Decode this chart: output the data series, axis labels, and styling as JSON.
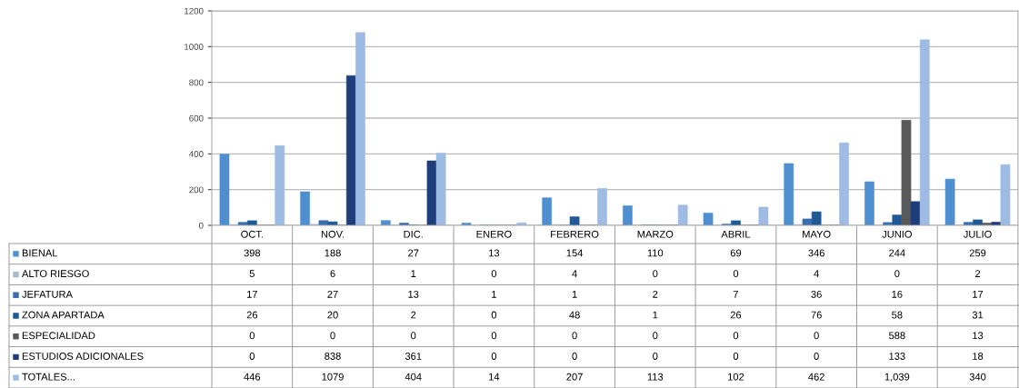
{
  "chart_data": {
    "type": "bar",
    "categories": [
      "OCT.",
      "NOV.",
      "DIC.",
      "ENERO",
      "FEBRERO",
      "MARZO",
      "ABRIL",
      "MAYO",
      "JUNIO",
      "JULIO"
    ],
    "series": [
      {
        "name": "BIENAL",
        "color": "#4f8fd0",
        "values": [
          398,
          188,
          27,
          13,
          154,
          110,
          69,
          346,
          244,
          259
        ],
        "value_labels": [
          "398",
          "188",
          "27",
          "13",
          "154",
          "110",
          "69",
          "346",
          "244",
          "259"
        ]
      },
      {
        "name": "ALTO RIESGO",
        "color": "#a9b8cf",
        "values": [
          5,
          6,
          1,
          0,
          4,
          0,
          0,
          4,
          0,
          2
        ],
        "value_labels": [
          "5",
          "6",
          "1",
          "0",
          "4",
          "0",
          "0",
          "4",
          "0",
          "2"
        ]
      },
      {
        "name": "JEFATURA",
        "color": "#3a6fb0",
        "values": [
          17,
          27,
          13,
          1,
          1,
          2,
          7,
          36,
          16,
          17
        ],
        "value_labels": [
          "17",
          "27",
          "13",
          "1",
          "1",
          "2",
          "7",
          "36",
          "16",
          "17"
        ]
      },
      {
        "name": "ZONA APARTADA",
        "color": "#1f5a96",
        "values": [
          26,
          20,
          2,
          0,
          48,
          1,
          26,
          76,
          58,
          31
        ],
        "value_labels": [
          "26",
          "20",
          "2",
          "0",
          "48",
          "1",
          "26",
          "76",
          "58",
          "31"
        ]
      },
      {
        "name": "ESPECIALIDAD",
        "color": "#595959",
        "values": [
          0,
          0,
          0,
          0,
          0,
          0,
          0,
          0,
          588,
          13
        ],
        "value_labels": [
          "0",
          "0",
          "0",
          "0",
          "0",
          "0",
          "0",
          "0",
          "588",
          "13"
        ]
      },
      {
        "name": "ESTUDIOS ADICIONALES",
        "color": "#1f3d7a",
        "values": [
          0,
          838,
          361,
          0,
          0,
          0,
          0,
          0,
          133,
          18
        ],
        "value_labels": [
          "0",
          "838",
          "361",
          "0",
          "0",
          "0",
          "0",
          "0",
          "133",
          "18"
        ]
      },
      {
        "name": "TOTALES...",
        "color": "#9dbbe3",
        "values": [
          446,
          1079,
          404,
          14,
          207,
          113,
          102,
          462,
          1039,
          340
        ],
        "value_labels": [
          "446",
          "1079",
          "404",
          "14",
          "207",
          "113",
          "102",
          "462",
          "1,039",
          "340"
        ]
      }
    ],
    "ylim": [
      0,
      1200
    ],
    "yticks": [
      0,
      200,
      400,
      600,
      800,
      1000,
      1200
    ],
    "grid": "y",
    "legend": "bottom"
  }
}
